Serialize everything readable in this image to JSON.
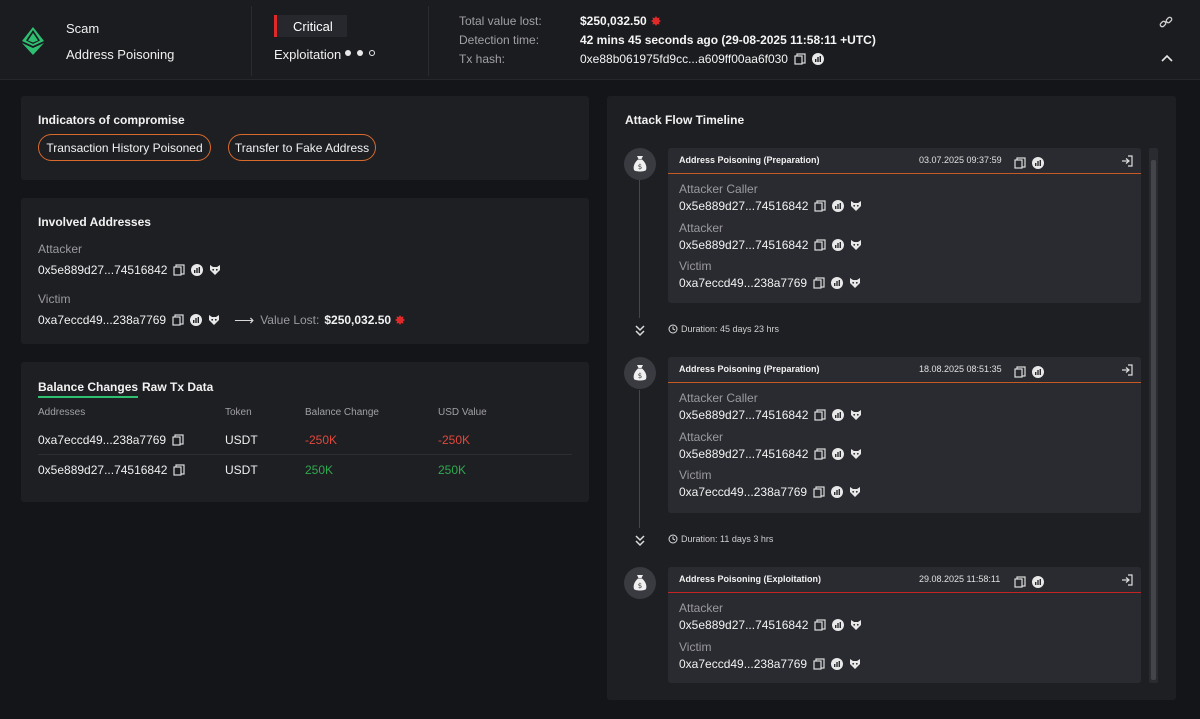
{
  "incident": {
    "category": "Scam",
    "type": "Address Poisoning",
    "severity": "Critical",
    "stage": "Exploitation",
    "total_value_lost_label": "Total value lost:",
    "total_value_lost": "$250,032.50",
    "detection_time_label": "Detection time:",
    "detection_time": "42 mins 45 seconds ago (29-08-2025 11:58:11 +UTC)",
    "tx_hash_label": "Tx hash:",
    "tx_hash": "0xe88b061975fd9cc...a609ff00aa6f030"
  },
  "ioc": {
    "title": "Indicators of compromise",
    "tags": [
      "Transaction History Poisoned",
      "Transfer to Fake Address"
    ]
  },
  "involved": {
    "title": "Involved Addresses",
    "attacker_label": "Attacker",
    "attacker": "0x5e889d27...74516842",
    "victim_label": "Victim",
    "victim": "0xa7eccd49...238a7769",
    "value_lost_label": "Value Lost:",
    "value_lost": "$250,032.50"
  },
  "balance": {
    "tabs": [
      "Balance Changes",
      "Raw Tx Data"
    ],
    "columns": [
      "Addresses",
      "Token",
      "Balance Change",
      "USD Value"
    ],
    "rows": [
      {
        "address": "0xa7eccd49...238a7769",
        "token": "USDT",
        "change": "-250K",
        "usd": "-250K"
      },
      {
        "address": "0x5e889d27...74516842",
        "token": "USDT",
        "change": "250K",
        "usd": "250K"
      }
    ]
  },
  "timeline": {
    "title": "Attack Flow Timeline",
    "events": [
      {
        "title": "Address Poisoning  (Preparation)",
        "date": "03.07.2025 09:37:59",
        "entries": [
          {
            "label": "Attacker Caller",
            "address": "0x5e889d27...74516842"
          },
          {
            "label": "Attacker",
            "address": "0x5e889d27...74516842"
          },
          {
            "label": "Victim",
            "address": "0xa7eccd49...238a7769"
          }
        ]
      },
      {
        "title": "Address Poisoning  (Preparation)",
        "date": "18.08.2025 08:51:35",
        "entries": [
          {
            "label": "Attacker Caller",
            "address": "0x5e889d27...74516842"
          },
          {
            "label": "Attacker",
            "address": "0x5e889d27...74516842"
          },
          {
            "label": "Victim",
            "address": "0xa7eccd49...238a7769"
          }
        ]
      },
      {
        "title": "Address Poisoning  (Exploitation)",
        "date": "29.08.2025 11:58:11",
        "entries": [
          {
            "label": "Attacker",
            "address": "0x5e889d27...74516842"
          },
          {
            "label": "Victim",
            "address": "0xa7eccd49...238a7769"
          }
        ]
      }
    ],
    "durations": [
      "Duration: 45 days 23 hrs",
      "Duration: 11 days 3 hrs"
    ]
  },
  "colors": {
    "accent_green": "#2fbf71",
    "critical_red": "#e02a2a",
    "pill_orange": "#d96a2c",
    "negative": "#e0483c",
    "positive": "#2fa84f"
  },
  "icons": {
    "chain": "ethereum-icon",
    "copy": "copy-icon",
    "explorer": "explorer-chart-icon",
    "tag": "fox-icon",
    "link": "link-icon",
    "collapse": "chevron-up-icon",
    "node": "money-bag-icon",
    "open": "open-external-icon",
    "duration": "clock-icon"
  }
}
